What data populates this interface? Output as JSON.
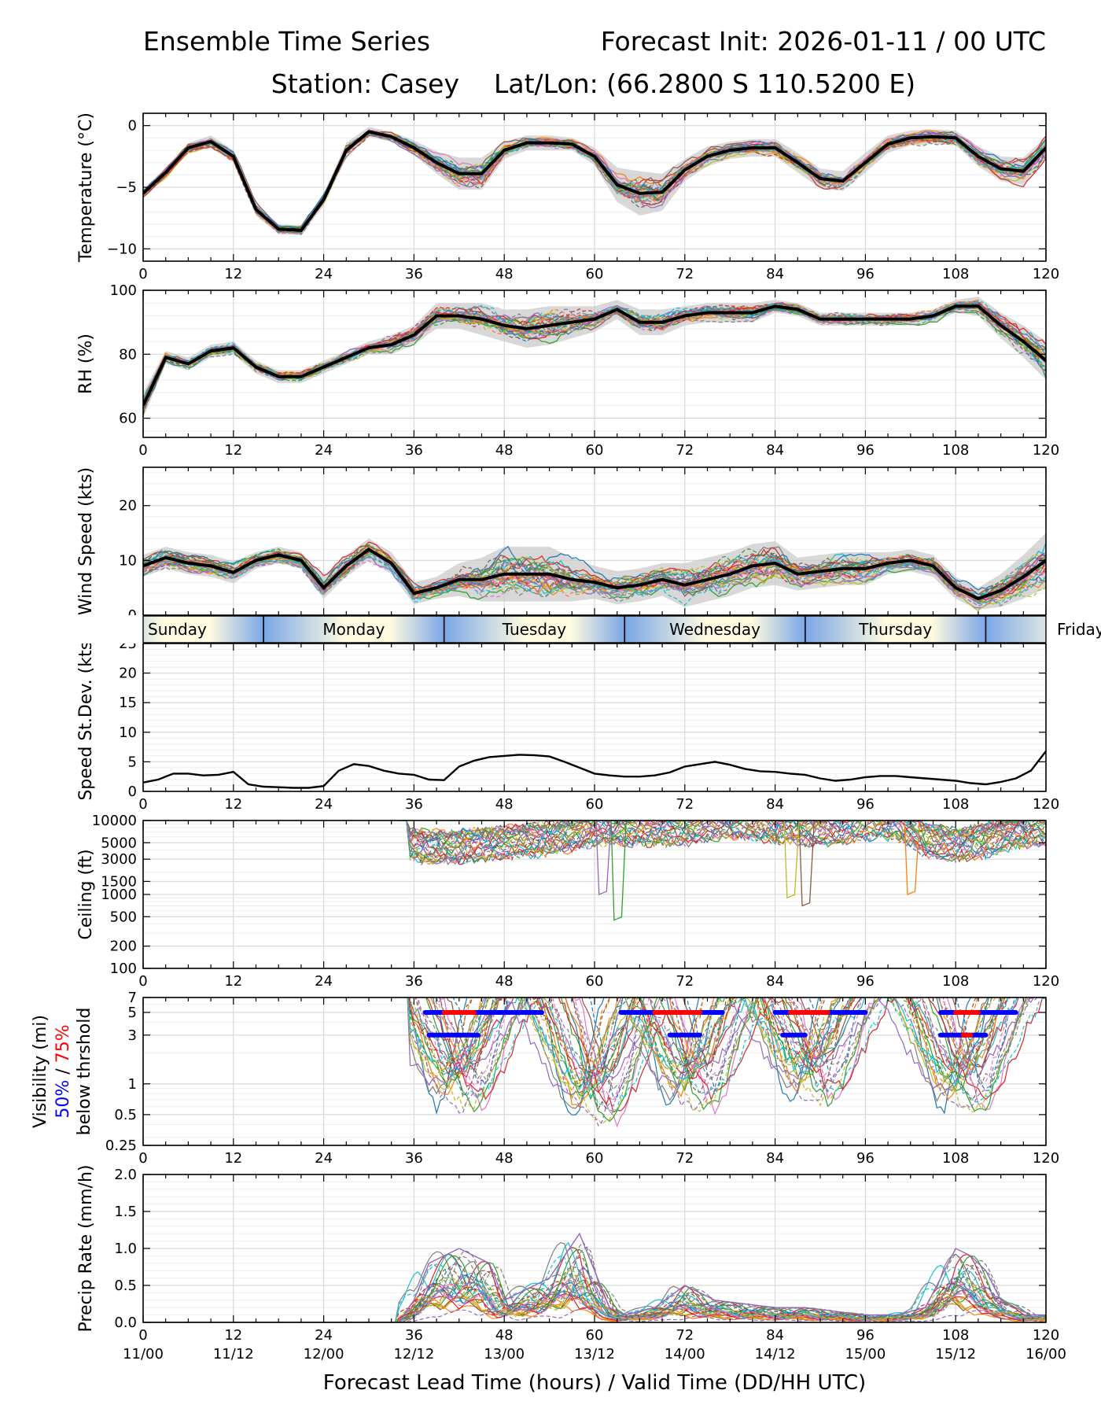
{
  "title_left": "Ensemble Time Series",
  "title_right": "Forecast Init: 2026-01-11 / 00 UTC",
  "station": "Station: Casey",
  "latlon": "Lat/Lon: (66.2800 S 110.5200 E)",
  "colors": {
    "member_palette": [
      "#1f77b4",
      "#ff7f0e",
      "#2ca02c",
      "#d62728",
      "#9467bd",
      "#8c564b",
      "#e377c2",
      "#7f7f7f",
      "#bcbd22",
      "#17becf"
    ],
    "mean": "#000000",
    "spread": "#c8c8c8",
    "vis50": "#0000ff",
    "vis75": "#ff0000"
  },
  "days": [
    "Sunday",
    "Monday",
    "Tuesday",
    "Wednesday",
    "Thursday",
    "Friday"
  ],
  "xlabel": "Forecast Lead Time (hours) / Valid Time (DD/HH UTC)",
  "valid_times": [
    "11/00",
    "11/12",
    "12/00",
    "12/12",
    "13/00",
    "13/12",
    "14/00",
    "14/12",
    "15/00",
    "15/12",
    "16/00"
  ],
  "chart_data": [
    {
      "type": "line",
      "id": "temp",
      "ylabel": "Temperature (°C)",
      "xlim": [
        0,
        120
      ],
      "ylim": [
        -11,
        1
      ],
      "yticks": [
        0,
        -5,
        -10
      ],
      "ytick_labels": [
        "0",
        "−5",
        "−10"
      ],
      "xticks": [
        0,
        12,
        24,
        36,
        48,
        60,
        72,
        84,
        96,
        108,
        120
      ],
      "series": [
        {
          "name": "ensemble mean",
          "x": [
            0,
            3,
            6,
            9,
            12,
            15,
            18,
            21,
            24,
            27,
            30,
            33,
            36,
            39,
            42,
            45,
            48,
            51,
            54,
            57,
            60,
            63,
            66,
            69,
            72,
            75,
            78,
            81,
            84,
            87,
            90,
            93,
            96,
            99,
            102,
            105,
            108,
            111,
            114,
            117,
            120
          ],
          "values": [
            -5.5,
            -3.8,
            -1.8,
            -1.3,
            -2.5,
            -6.8,
            -8.4,
            -8.5,
            -6.0,
            -2.0,
            -0.5,
            -0.9,
            -1.8,
            -3.0,
            -3.9,
            -3.9,
            -2.0,
            -1.4,
            -1.4,
            -1.5,
            -2.5,
            -4.8,
            -5.5,
            -5.4,
            -3.6,
            -2.5,
            -2.0,
            -1.8,
            -1.8,
            -3.0,
            -4.3,
            -4.5,
            -3.0,
            -1.5,
            -1.0,
            -0.9,
            -1.0,
            -2.5,
            -3.5,
            -3.7,
            -1.8
          ]
        }
      ],
      "spread_half_width": [
        0.3,
        0.4,
        0.4,
        0.5,
        0.5,
        0.5,
        0.4,
        0.4,
        0.5,
        0.6,
        0.4,
        0.4,
        0.6,
        0.9,
        1.3,
        1.3,
        0.7,
        0.6,
        0.6,
        0.5,
        0.7,
        1.4,
        1.8,
        1.5,
        0.9,
        0.8,
        0.7,
        0.7,
        0.7,
        0.8,
        0.8,
        0.8,
        0.8,
        0.7,
        0.6,
        0.6,
        0.6,
        0.8,
        1.0,
        1.1,
        0.9
      ]
    },
    {
      "type": "line",
      "id": "rh",
      "ylabel": "RH (%)",
      "xlim": [
        0,
        120
      ],
      "ylim": [
        54,
        100
      ],
      "yticks": [
        60,
        80,
        100
      ],
      "ytick_labels": [
        "60",
        "80",
        "100"
      ],
      "xticks": [
        0,
        12,
        24,
        36,
        48,
        60,
        72,
        84,
        96,
        108,
        120
      ],
      "series": [
        {
          "name": "ensemble mean",
          "x": [
            0,
            3,
            6,
            9,
            12,
            15,
            18,
            21,
            24,
            27,
            30,
            33,
            36,
            39,
            42,
            45,
            48,
            51,
            54,
            57,
            60,
            63,
            66,
            69,
            72,
            75,
            78,
            81,
            84,
            87,
            90,
            93,
            96,
            99,
            102,
            105,
            108,
            111,
            114,
            117,
            120
          ],
          "values": [
            64,
            79,
            77,
            81,
            82,
            76,
            73,
            73,
            76,
            79,
            82,
            83,
            86,
            92,
            92,
            91,
            89,
            88,
            89,
            90,
            91,
            94,
            90,
            90,
            92,
            93,
            93,
            93,
            95,
            94,
            91,
            91,
            91,
            91,
            91,
            92,
            95,
            95,
            89,
            84,
            78
          ]
        }
      ],
      "spread_half_width": [
        4,
        2,
        2,
        2,
        2,
        2,
        2,
        2,
        2,
        2,
        2,
        3,
        3,
        4,
        4,
        5,
        5,
        6,
        6,
        5,
        4,
        3,
        4,
        4,
        3,
        3,
        3,
        3,
        2,
        2,
        2,
        2,
        2,
        2,
        2,
        2,
        2,
        3,
        4,
        5,
        6
      ]
    },
    {
      "type": "line",
      "id": "wind",
      "ylabel": "Wind Speed (kts)",
      "xlim": [
        0,
        120
      ],
      "ylim": [
        0,
        27
      ],
      "yticks": [
        0,
        10,
        20
      ],
      "ytick_labels": [
        "0",
        "10",
        "20"
      ],
      "xticks": [
        0,
        12,
        24,
        36,
        48,
        60,
        72,
        84,
        96,
        108,
        120
      ],
      "series": [
        {
          "name": "ensemble mean",
          "x": [
            0,
            3,
            6,
            9,
            12,
            15,
            18,
            21,
            24,
            27,
            30,
            33,
            36,
            39,
            42,
            45,
            48,
            51,
            54,
            57,
            60,
            63,
            66,
            69,
            72,
            75,
            78,
            81,
            84,
            87,
            90,
            93,
            96,
            99,
            102,
            105,
            108,
            111,
            114,
            117,
            120
          ],
          "values": [
            9.0,
            10.5,
            9.5,
            9.0,
            7.8,
            10.0,
            11.0,
            10.0,
            5.0,
            9.0,
            12.0,
            9.5,
            4.0,
            5.0,
            6.5,
            6.5,
            7.5,
            7.5,
            7.5,
            6.5,
            6.0,
            5.0,
            5.5,
            6.5,
            5.5,
            6.5,
            7.5,
            9.0,
            9.5,
            7.5,
            8.0,
            8.5,
            8.5,
            9.5,
            10.0,
            9.0,
            5.0,
            3.0,
            4.5,
            7.0,
            10.0
          ]
        }
      ],
      "spread_half_width": [
        2,
        2,
        2,
        2,
        2,
        1.5,
        1.5,
        1.5,
        2,
        2,
        2,
        2,
        2,
        2,
        3,
        4,
        5,
        5,
        5,
        4,
        3,
        3,
        3,
        3,
        4,
        4,
        4,
        4,
        4,
        3,
        3,
        3,
        3,
        2,
        2,
        2,
        2,
        2,
        3,
        4,
        5
      ]
    },
    {
      "type": "line",
      "id": "speed_sd",
      "ylabel": "Speed St.Dev. (kts)",
      "xlim": [
        0,
        120
      ],
      "ylim": [
        0,
        25
      ],
      "yticks": [
        0,
        5,
        10,
        15,
        20,
        25
      ],
      "ytick_labels": [
        "0",
        "5",
        "10",
        "15",
        "20",
        "25"
      ],
      "xticks": [
        0,
        12,
        24,
        36,
        48,
        60,
        72,
        84,
        96,
        108,
        120
      ],
      "series": [
        {
          "name": "speed st.dev",
          "x": [
            0,
            2,
            4,
            6,
            8,
            10,
            12,
            14,
            16,
            18,
            20,
            22,
            24,
            26,
            28,
            30,
            32,
            34,
            36,
            38,
            40,
            42,
            44,
            46,
            48,
            50,
            52,
            54,
            56,
            58,
            60,
            62,
            64,
            66,
            68,
            70,
            72,
            74,
            76,
            78,
            80,
            82,
            84,
            86,
            88,
            90,
            92,
            94,
            96,
            98,
            100,
            102,
            104,
            106,
            108,
            110,
            112,
            114,
            116,
            118,
            120
          ],
          "values": [
            1.5,
            2.0,
            3.0,
            3.0,
            2.7,
            2.8,
            3.3,
            1.2,
            0.8,
            0.7,
            0.6,
            0.6,
            0.9,
            3.5,
            4.6,
            4.3,
            3.5,
            3.0,
            2.8,
            2.0,
            1.9,
            4.2,
            5.2,
            5.8,
            6.0,
            6.2,
            6.1,
            5.9,
            5.0,
            4.0,
            3.0,
            2.7,
            2.5,
            2.5,
            2.7,
            3.2,
            4.2,
            4.6,
            5.0,
            4.5,
            3.8,
            3.4,
            3.3,
            3.0,
            2.8,
            2.2,
            1.8,
            2.0,
            2.4,
            2.6,
            2.6,
            2.4,
            2.2,
            2.0,
            1.8,
            1.4,
            1.2,
            1.6,
            2.2,
            3.5,
            6.8
          ]
        }
      ]
    },
    {
      "type": "line",
      "id": "ceiling",
      "ylabel": "Ceiling (ft)",
      "xlim": [
        0,
        120
      ],
      "yscale": "log",
      "ylim": [
        100,
        10000
      ],
      "yticks": [
        100,
        200,
        500,
        1000,
        1500,
        3000,
        5000,
        10000
      ],
      "ytick_labels": [
        "100",
        "200",
        "500",
        "1000",
        "1500",
        "3000",
        "5000",
        "10000"
      ],
      "xticks": [
        0,
        12,
        24,
        36,
        48,
        60,
        72,
        84,
        96,
        108,
        120
      ],
      "ensemble_band": {
        "x": [
          36,
          40,
          44,
          48,
          52,
          56,
          60,
          64,
          68,
          72,
          76,
          80,
          84,
          88,
          92,
          96,
          100,
          104,
          108,
          112,
          116,
          120
        ],
        "low": [
          3000,
          2800,
          3000,
          3200,
          3500,
          4000,
          5000,
          5000,
          5000,
          5000,
          6000,
          6000,
          5500,
          5000,
          5000,
          6000,
          6000,
          3500,
          3000,
          3500,
          4500,
          5000
        ],
        "high": [
          10000,
          10000,
          10000,
          10000,
          10000,
          10000,
          10000,
          10000,
          10000,
          10000,
          10000,
          10000,
          10000,
          10000,
          10000,
          10000,
          10000,
          10000,
          10000,
          10000,
          10000,
          10000
        ]
      },
      "annotations": [
        {
          "x": 63,
          "min": 450
        },
        {
          "x": 88,
          "min": 700
        },
        {
          "x": 86,
          "min": 900
        },
        {
          "x": 102,
          "min": 1000
        },
        {
          "x": 61,
          "min": 1000
        }
      ]
    },
    {
      "type": "line",
      "id": "visibility",
      "ylabel_lines": [
        "Visibility (mi)",
        "50%",
        " / ",
        "75%",
        "below thrshold"
      ],
      "xlim": [
        0,
        120
      ],
      "yscale": "log",
      "ylim": [
        0.25,
        7
      ],
      "yticks": [
        0.25,
        0.5,
        1,
        3,
        5,
        7
      ],
      "ytick_labels": [
        "0.25",
        "0.5",
        "1",
        "3",
        "5",
        "7"
      ],
      "xticks": [
        0,
        12,
        24,
        36,
        48,
        60,
        72,
        84,
        96,
        108,
        120
      ],
      "threshold_segments": [
        {
          "level": 5,
          "pct": 50,
          "x0": 37.5,
          "x1": 53
        },
        {
          "level": 5,
          "pct": 75,
          "x0": 40,
          "x1": 44
        },
        {
          "level": 3,
          "pct": 50,
          "x0": 38,
          "x1": 44.5
        },
        {
          "level": 5,
          "pct": 50,
          "x0": 63.5,
          "x1": 77
        },
        {
          "level": 5,
          "pct": 75,
          "x0": 68,
          "x1": 74
        },
        {
          "level": 3,
          "pct": 50,
          "x0": 70,
          "x1": 74
        },
        {
          "level": 5,
          "pct": 50,
          "x0": 84,
          "x1": 96
        },
        {
          "level": 5,
          "pct": 75,
          "x0": 86,
          "x1": 91
        },
        {
          "level": 3,
          "pct": 50,
          "x0": 85,
          "x1": 88
        },
        {
          "level": 5,
          "pct": 50,
          "x0": 106,
          "x1": 116
        },
        {
          "level": 5,
          "pct": 75,
          "x0": 108,
          "x1": 111
        },
        {
          "level": 3,
          "pct": 50,
          "x0": 106,
          "x1": 112
        },
        {
          "level": 3,
          "pct": 75,
          "x0": 109,
          "x1": 110
        }
      ]
    },
    {
      "type": "line",
      "id": "precip",
      "ylabel": "Precip Rate (mm/h)",
      "xlim": [
        0,
        120
      ],
      "ylim": [
        0,
        2.0
      ],
      "yticks": [
        0.0,
        0.5,
        1.0,
        1.5,
        2.0
      ],
      "ytick_labels": [
        "0.0",
        "0.5",
        "1.0",
        "1.5",
        "2.0"
      ],
      "xticks": [
        0,
        12,
        24,
        36,
        48,
        60,
        72,
        84,
        96,
        108,
        120
      ],
      "series": [
        {
          "name": "max member",
          "x": [
            34,
            36,
            38,
            40,
            42,
            44,
            46,
            48,
            50,
            52,
            54,
            56,
            58,
            60,
            62,
            64,
            68,
            72,
            76,
            80,
            84,
            88,
            92,
            96,
            100,
            104,
            106,
            108,
            110,
            112,
            114,
            116,
            118,
            120
          ],
          "values": [
            0,
            0.3,
            0.8,
            0.9,
            1.0,
            0.9,
            0.8,
            0.3,
            0.4,
            0.5,
            0.6,
            0.9,
            1.2,
            0.7,
            0.2,
            0.1,
            0.2,
            0.5,
            0.3,
            0.25,
            0.2,
            0.2,
            0.15,
            0.1,
            0.1,
            0.2,
            0.6,
            1.0,
            0.9,
            0.7,
            0.3,
            0.2,
            0.1,
            0.1
          ]
        }
      ]
    }
  ]
}
